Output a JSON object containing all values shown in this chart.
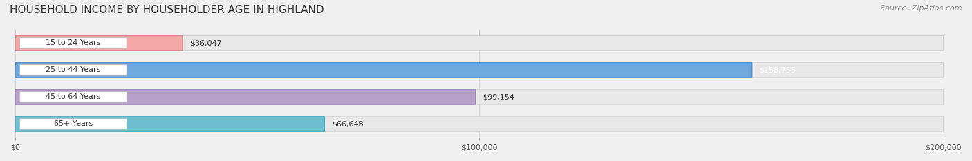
{
  "title": "HOUSEHOLD INCOME BY HOUSEHOLDER AGE IN HIGHLAND",
  "source": "Source: ZipAtlas.com",
  "categories": [
    "15 to 24 Years",
    "25 to 44 Years",
    "45 to 64 Years",
    "65+ Years"
  ],
  "values": [
    36047,
    158755,
    99154,
    66648
  ],
  "bar_colors": [
    "#f4a9a8",
    "#6fa8dc",
    "#b4a0c8",
    "#6dbfcf"
  ],
  "label_colors": [
    "#333333",
    "#ffffff",
    "#333333",
    "#333333"
  ],
  "bar_edge_colors": [
    "#d97b7b",
    "#4a86c8",
    "#9b80b8",
    "#3da8be"
  ],
  "xlim": [
    0,
    200000
  ],
  "xticks": [
    0,
    100000,
    200000
  ],
  "xtick_labels": [
    "$0",
    "$100,000",
    "$200,000"
  ],
  "background_color": "#f0f0f0",
  "bar_background_color": "#e8e8e8",
  "title_fontsize": 11,
  "source_fontsize": 8,
  "bar_height": 0.55,
  "figsize": [
    14.06,
    2.33
  ],
  "dpi": 100
}
